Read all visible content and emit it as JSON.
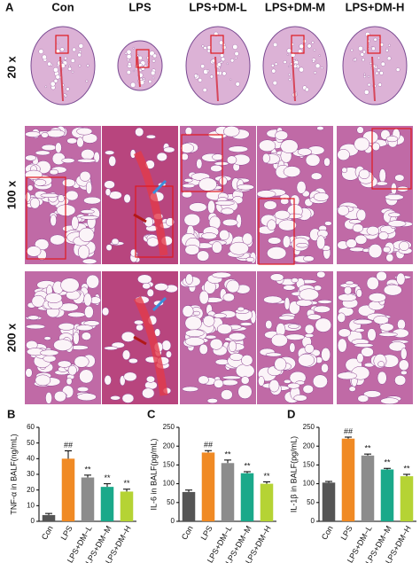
{
  "panel_a": {
    "label": "A",
    "columns": [
      "Con",
      "LPS",
      "LPS+DM-L",
      "LPS+DM-M",
      "LPS+DM-H"
    ],
    "rows": [
      "20 x",
      "100 x",
      "200 x"
    ]
  },
  "chart_data": [
    {
      "type": "bar",
      "panel": "B",
      "ylabel": "TNF-α in BALF(ng/mL)",
      "categories": [
        "Con",
        "LPS",
        "LPS+DM−L",
        "LPS+DM−M",
        "LPS+DM−H"
      ],
      "values": [
        4,
        40,
        28,
        22,
        19
      ],
      "errors": [
        1,
        5,
        1.5,
        2,
        1.5
      ],
      "annotations": [
        null,
        "##",
        "**",
        "**",
        "**"
      ],
      "colors": [
        "#555555",
        "#f08a24",
        "#8c8c8c",
        "#1aa98a",
        "#b5d334"
      ],
      "ylim": [
        0,
        60
      ],
      "yticks": [
        0,
        10,
        20,
        30,
        40,
        50,
        60
      ]
    },
    {
      "type": "bar",
      "panel": "C",
      "ylabel": "IL-6 in BALF(pg/mL)",
      "categories": [
        "Con",
        "LPS",
        "LPS+DM−L",
        "LPS+DM−M",
        "LPS+DM−H"
      ],
      "values": [
        78,
        183,
        155,
        128,
        100
      ],
      "errors": [
        5,
        5,
        8,
        4,
        5
      ],
      "annotations": [
        null,
        "##",
        "**",
        "**",
        "**"
      ],
      "colors": [
        "#555555",
        "#f08a24",
        "#8c8c8c",
        "#1aa98a",
        "#b5d334"
      ],
      "ylim": [
        0,
        250
      ],
      "yticks": [
        0,
        50,
        100,
        150,
        200,
        250
      ]
    },
    {
      "type": "bar",
      "panel": "D",
      "ylabel": "IL-1β in BALF(pg/mL)",
      "categories": [
        "Con",
        "LPS",
        "LPS+DM−L",
        "LPS+DM−M",
        "LPS+DM−H"
      ],
      "values": [
        103,
        220,
        175,
        138,
        120
      ],
      "errors": [
        3,
        4,
        4,
        3,
        5
      ],
      "annotations": [
        null,
        "##",
        "**",
        "**",
        "**"
      ],
      "colors": [
        "#555555",
        "#f08a24",
        "#8c8c8c",
        "#1aa98a",
        "#b5d334"
      ],
      "ylim": [
        0,
        250
      ],
      "yticks": [
        0,
        50,
        100,
        150,
        200,
        250
      ]
    }
  ]
}
